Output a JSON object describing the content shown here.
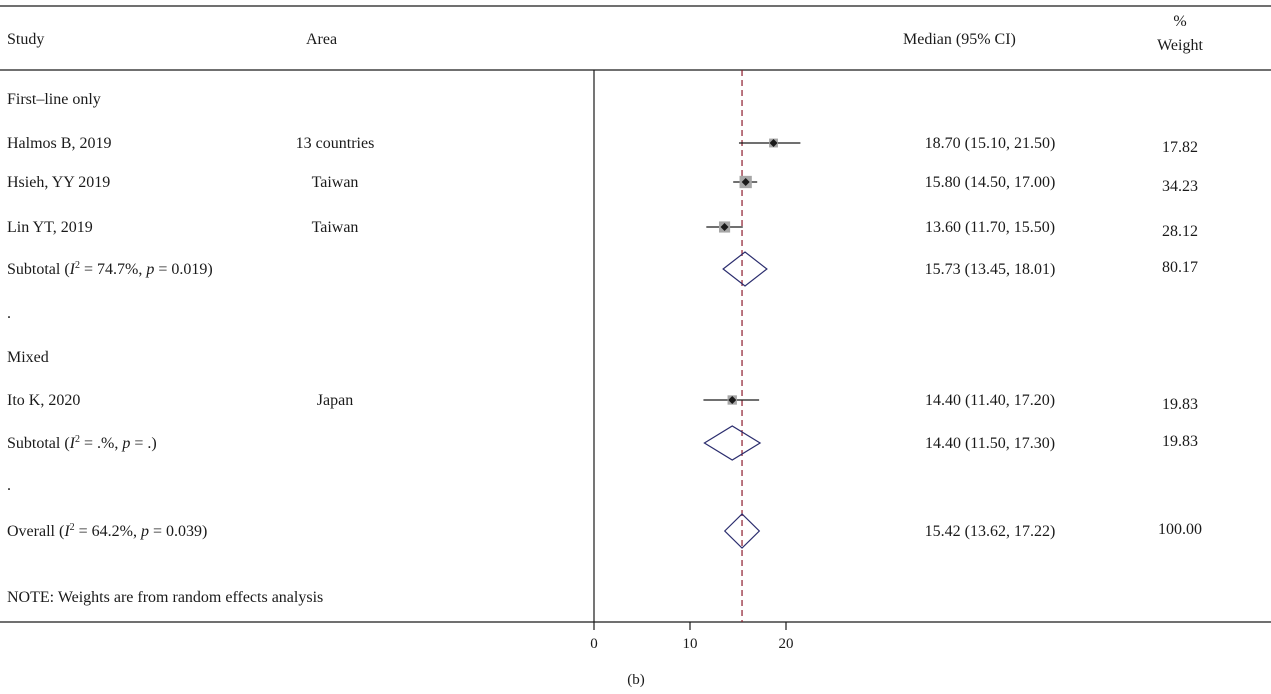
{
  "header": {
    "study": "Study",
    "area": "Area",
    "median": "Median (95% CI)",
    "weight_line1": "%",
    "weight_line2": "Weight"
  },
  "caption": "(b)",
  "chart_data": {
    "type": "forest",
    "title": "",
    "xlabel": "",
    "x_ticks": [
      0,
      10,
      20
    ],
    "xlim": [
      0,
      28
    ],
    "reference_line": 15.42,
    "note": "NOTE: Weights are from random effects analysis",
    "rows": [
      {
        "kind": "group",
        "label": "First–line only"
      },
      {
        "kind": "study",
        "study": "Halmos B, 2019",
        "area": "13 countries",
        "est": 18.7,
        "lo": 15.1,
        "hi": 21.5,
        "ci_text": "18.70 (15.10, 21.50)",
        "weight": 17.82,
        "weight_text": "17.82"
      },
      {
        "kind": "study",
        "study": "Hsieh, YY 2019",
        "area": "Taiwan",
        "est": 15.8,
        "lo": 14.5,
        "hi": 17.0,
        "ci_text": "15.80 (14.50, 17.00)",
        "weight": 34.23,
        "weight_text": "34.23"
      },
      {
        "kind": "study",
        "study": "Lin YT, 2019",
        "area": "Taiwan",
        "est": 13.6,
        "lo": 11.7,
        "hi": 15.5,
        "ci_text": "13.60 (11.70, 15.50)",
        "weight": 28.12,
        "weight_text": "28.12"
      },
      {
        "kind": "subtotal",
        "label_pre": "Subtotal (",
        "i2_sym": "I",
        "sup": "2",
        "label_mid": " = 74.7%, ",
        "p_sym": "p",
        "label_post": " = 0.019)",
        "est": 15.73,
        "lo": 13.45,
        "hi": 18.01,
        "ci_text": "15.73 (13.45, 18.01)",
        "weight_text": "80.17"
      },
      {
        "kind": "spacer",
        "label": "."
      },
      {
        "kind": "group",
        "label": "Mixed"
      },
      {
        "kind": "study",
        "study": "Ito K, 2020",
        "area": "Japan",
        "est": 14.4,
        "lo": 11.4,
        "hi": 17.2,
        "ci_text": "14.40 (11.40, 17.20)",
        "weight": 19.83,
        "weight_text": "19.83"
      },
      {
        "kind": "subtotal",
        "label_pre": "Subtotal (",
        "i2_sym": "I",
        "sup": "2",
        "label_mid": " = .%, ",
        "p_sym": "p",
        "label_post": " = .)",
        "est": 14.4,
        "lo": 11.5,
        "hi": 17.3,
        "ci_text": "14.40 (11.50, 17.30)",
        "weight_text": "19.83"
      },
      {
        "kind": "spacer",
        "label": "."
      },
      {
        "kind": "overall",
        "label_pre": "Overall (",
        "i2_sym": "I",
        "sup": "2",
        "label_mid": " = 64.2%, ",
        "p_sym": "p",
        "label_post": " = 0.039)",
        "est": 15.42,
        "lo": 13.62,
        "hi": 17.22,
        "ci_text": "15.42 (13.62, 17.22)",
        "weight_text": "100.00"
      }
    ]
  }
}
